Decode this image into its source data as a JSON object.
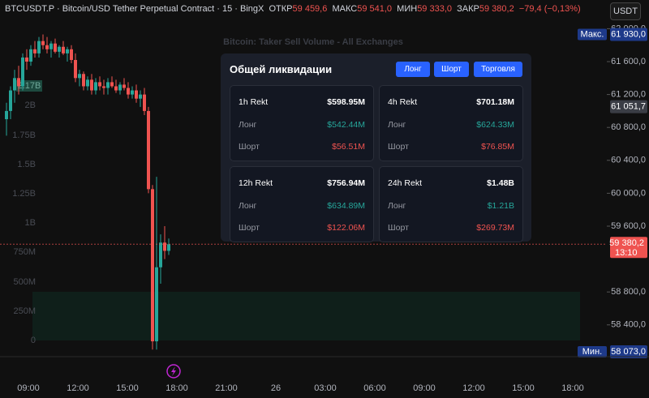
{
  "header": {
    "symbol": "BTCUSDT.P",
    "description": "Bitcoin/USD Tether Perpetual Contract",
    "interval": "15",
    "exchange": "BingX",
    "open_label": "ОТКР",
    "open": "59 459,6",
    "high_label": "МАКС",
    "high": "59 541,0",
    "low_label": "МИН",
    "low": "59 333,0",
    "close_label": "ЗАКР",
    "close": "59 380,2",
    "change": "−79,4 (−0,13%)"
  },
  "currency_button": "USDT",
  "overlay": {
    "title": "Bitcoin: Taker Sell Volume - All Exchanges",
    "current_badge": "2.17B",
    "axis_labels": [
      "2B",
      "1.75B",
      "1.5B",
      "1.25B",
      "1B",
      "750M",
      "500M",
      "250M",
      "0"
    ]
  },
  "price_chart": {
    "candles": [
      [
        60900,
        61100,
        60700,
        61000
      ],
      [
        61000,
        61300,
        60900,
        61250
      ],
      [
        61250,
        61500,
        61100,
        61400
      ],
      [
        61400,
        61550,
        61200,
        61300
      ],
      [
        61300,
        61700,
        61250,
        61650
      ],
      [
        61650,
        61750,
        61500,
        61600
      ],
      [
        61600,
        61800,
        61550,
        61750
      ],
      [
        61750,
        61850,
        61650,
        61700
      ],
      [
        61700,
        61900,
        61650,
        61850
      ],
      [
        61850,
        61930,
        61750,
        61800
      ],
      [
        61800,
        61900,
        61700,
        61750
      ],
      [
        61750,
        61850,
        61650,
        61820
      ],
      [
        61820,
        61880,
        61700,
        61720
      ],
      [
        61720,
        61800,
        61650,
        61780
      ],
      [
        61780,
        61850,
        61680,
        61700
      ],
      [
        61700,
        61780,
        61600,
        61750
      ],
      [
        61750,
        61800,
        61580,
        61620
      ],
      [
        61620,
        61700,
        61350,
        61400
      ],
      [
        61400,
        61500,
        61300,
        61450
      ],
      [
        61450,
        61480,
        61250,
        61300
      ],
      [
        61300,
        61420,
        61250,
        61380
      ],
      [
        61380,
        61450,
        61200,
        61250
      ],
      [
        61250,
        61400,
        61200,
        61350
      ],
      [
        61350,
        61420,
        61250,
        61300
      ],
      [
        61300,
        61380,
        61200,
        61280
      ],
      [
        61280,
        61400,
        61200,
        61350
      ],
      [
        61350,
        61420,
        61280,
        61300
      ],
      [
        61300,
        61380,
        61220,
        61250
      ],
      [
        61250,
        61350,
        61200,
        61320
      ],
      [
        61320,
        61400,
        61250,
        61280
      ],
      [
        61280,
        61350,
        61150,
        61200
      ],
      [
        61200,
        61300,
        61150,
        61250
      ],
      [
        61250,
        61320,
        61100,
        61150
      ],
      [
        61150,
        61250,
        61050,
        61200
      ],
      [
        61200,
        61280,
        60950,
        61000
      ],
      [
        61000,
        61050,
        60000,
        60050
      ],
      [
        60050,
        60100,
        58100,
        58200
      ],
      [
        58200,
        60200,
        58100,
        59100
      ],
      [
        59100,
        59500,
        58900,
        59400
      ],
      [
        59400,
        59600,
        59200,
        59300
      ],
      [
        59300,
        59450,
        59250,
        59380
      ]
    ],
    "up_color": "#26a69a",
    "down_color": "#ef5350",
    "ylim": [
      57915,
      62349
    ],
    "yticks": [
      {
        "value": 62000,
        "label": "62 000,0"
      },
      {
        "value": 61600,
        "label": "61 600,0"
      },
      {
        "value": 61200,
        "label": "61 200,0"
      },
      {
        "value": 60800,
        "label": "60 800,0"
      },
      {
        "value": 60400,
        "label": "60 400,0"
      },
      {
        "value": 60000,
        "label": "60 000,0"
      },
      {
        "value": 59600,
        "label": "59 600,0"
      },
      {
        "value": 58800,
        "label": "58 800,0"
      },
      {
        "value": 58400,
        "label": "58 400,0"
      }
    ],
    "max_badge": {
      "label": "Макс.",
      "value": 61930,
      "value_label": "61 930,0"
    },
    "min_badge": {
      "label": "Мин.",
      "value": 58073,
      "value_label": "58 073,0"
    },
    "line_badge": {
      "value": 61051.7,
      "value_label": "61 051,7"
    },
    "current_price": {
      "value": 59380.2,
      "value_label": "59 380,2",
      "countdown": "13:10"
    }
  },
  "time_labels": [
    "09:00",
    "12:00",
    "15:00",
    "18:00",
    "21:00",
    "26",
    "03:00",
    "06:00",
    "09:00",
    "12:00",
    "15:00",
    "18:00"
  ],
  "liquidation_panel": {
    "title": "Общей ликвидации",
    "buttons": [
      "Лонг",
      "Шорт",
      "Торговля"
    ],
    "cards": [
      {
        "label": "1h Rekt",
        "total": "$598.95M",
        "long_label": "Лонг",
        "long": "$542.44M",
        "short_label": "Шорт",
        "short": "$56.51M"
      },
      {
        "label": "4h Rekt",
        "total": "$701.18M",
        "long_label": "Лонг",
        "long": "$624.33M",
        "short_label": "Шорт",
        "short": "$76.85M"
      },
      {
        "label": "12h Rekt",
        "total": "$756.94M",
        "long_label": "Лонг",
        "long": "$634.89M",
        "short_label": "Шорт",
        "short": "$122.06M"
      },
      {
        "label": "24h Rekt",
        "total": "$1.48B",
        "long_label": "Лонг",
        "long": "$1.21B",
        "short_label": "Шорт",
        "short": "$269.73M"
      }
    ]
  }
}
